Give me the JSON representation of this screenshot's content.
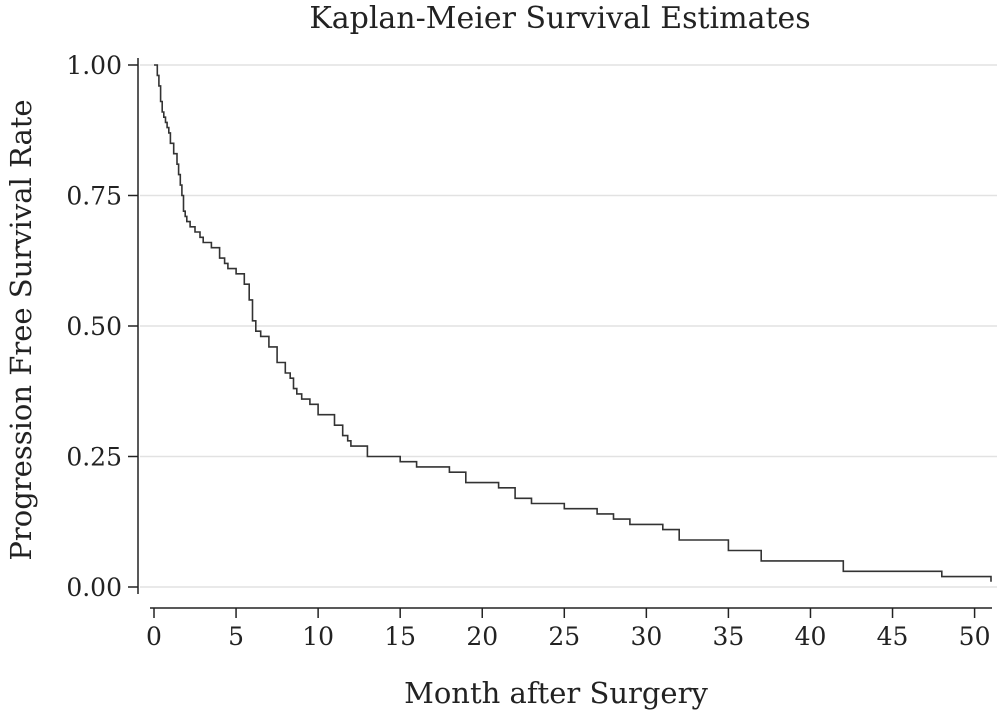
{
  "chart_data": {
    "type": "line",
    "title": "Kaplan-Meier Survival Estimates",
    "xlabel": "Month after Surgery",
    "ylabel": "Progression Free Survival Rate",
    "xlim": [
      0,
      51
    ],
    "ylim": [
      0,
      1
    ],
    "x_ticks": [
      0,
      5,
      10,
      15,
      20,
      25,
      30,
      35,
      40,
      45,
      50
    ],
    "y_ticks": [
      0.0,
      0.25,
      0.5,
      0.75,
      1.0
    ],
    "y_tick_labels": [
      "0.00",
      "0.25",
      "0.50",
      "0.75",
      "1.00"
    ],
    "grid": "horizontal",
    "step": "post",
    "series": [
      {
        "x": [
          0,
          0.2,
          0.3,
          0.4,
          0.5,
          0.6,
          0.7,
          0.8,
          0.9,
          1.0,
          1.2,
          1.4,
          1.5,
          1.6,
          1.7,
          1.8,
          1.9,
          2.0,
          2.2,
          2.5,
          2.8,
          3.0,
          3.5,
          4.0,
          4.3,
          4.5,
          5.0,
          5.5,
          5.8,
          6.0,
          6.2,
          6.5,
          7.0,
          7.5,
          8.0,
          8.3,
          8.5,
          8.7,
          9.0,
          9.5,
          10.0,
          11.0,
          11.5,
          11.8,
          12.0,
          13.0,
          15.0,
          16.0,
          18.0,
          19.0,
          21.0,
          22.0,
          23.0,
          25.0,
          27.0,
          28.0,
          29.0,
          31.0,
          32.0,
          35.0,
          37.0,
          42.0,
          48.0,
          51.0
        ],
        "y": [
          1.0,
          0.98,
          0.96,
          0.93,
          0.91,
          0.9,
          0.89,
          0.88,
          0.87,
          0.85,
          0.83,
          0.81,
          0.79,
          0.77,
          0.75,
          0.72,
          0.71,
          0.7,
          0.69,
          0.68,
          0.67,
          0.66,
          0.65,
          0.63,
          0.62,
          0.61,
          0.6,
          0.58,
          0.55,
          0.51,
          0.49,
          0.48,
          0.46,
          0.43,
          0.41,
          0.4,
          0.38,
          0.37,
          0.36,
          0.35,
          0.33,
          0.31,
          0.29,
          0.28,
          0.27,
          0.25,
          0.24,
          0.23,
          0.22,
          0.2,
          0.19,
          0.17,
          0.16,
          0.15,
          0.14,
          0.13,
          0.12,
          0.11,
          0.09,
          0.07,
          0.05,
          0.03,
          0.02,
          0.01
        ]
      }
    ]
  }
}
